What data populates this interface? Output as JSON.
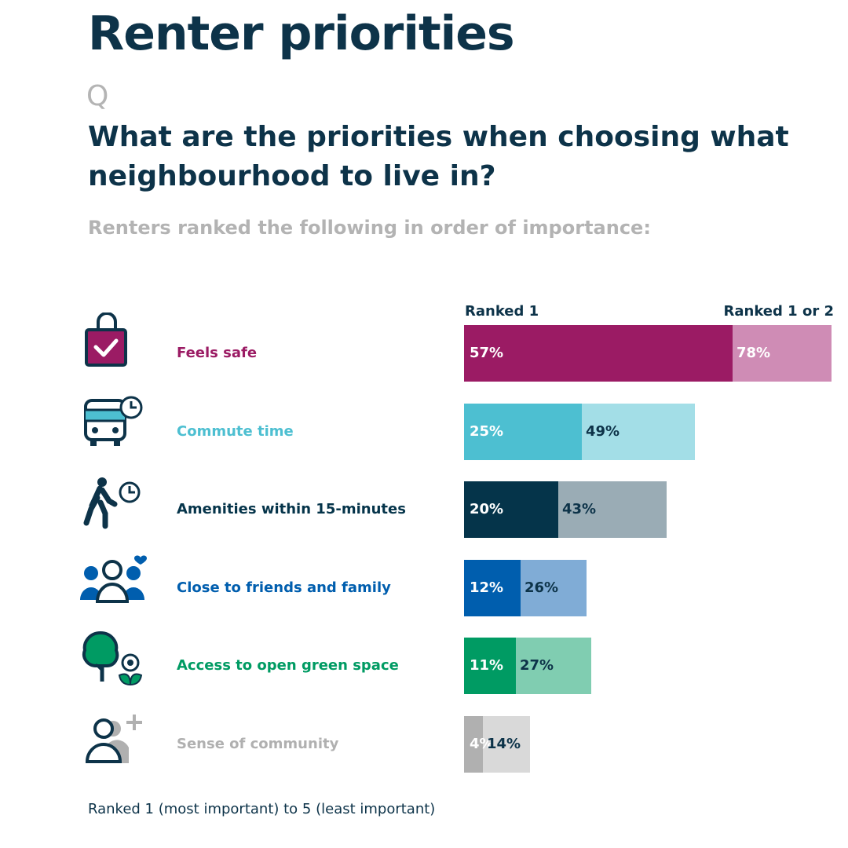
{
  "title": "Renter priorities",
  "q_mark": "Q",
  "question": "What are the priorities when choosing what neighbourhood to live in?",
  "subtitle": "Renters ranked the following in order of importance:",
  "footnote": "Ranked 1 (most important) to 5 (least important)",
  "chart_data": {
    "type": "bar",
    "orientation": "horizontal",
    "series": [
      {
        "name": "Ranked 1",
        "values": [
          57,
          25,
          20,
          12,
          11,
          4
        ]
      },
      {
        "name": "Ranked 1 or 2",
        "values": [
          78,
          49,
          43,
          26,
          27,
          14
        ]
      }
    ],
    "categories": [
      {
        "label": "Feels safe",
        "icon": "lock-check-icon",
        "color": "#9b1b64",
        "light": "#cf8cb5",
        "label_color": "#9b1b64",
        "inner_text": "#ffffff",
        "outer_text": "#ffffff"
      },
      {
        "label": "Commute time",
        "icon": "bus-clock-icon",
        "color": "#4dbfd1",
        "light": "#a3dee7",
        "label_color": "#4dbfd1",
        "inner_text": "#ffffff",
        "outer_text": "#0d3349"
      },
      {
        "label": "Amenities within 15-minutes",
        "icon": "walking-clock-icon",
        "color": "#05344a",
        "light": "#9aacb5",
        "label_color": "#05344a",
        "inner_text": "#ffffff",
        "outer_text": "#0d3349"
      },
      {
        "label": "Close to friends and family",
        "icon": "people-heart-icon",
        "color": "#005eae",
        "light": "#80acd6",
        "label_color": "#005eae",
        "inner_text": "#ffffff",
        "outer_text": "#0d3349"
      },
      {
        "label": "Access to open green space",
        "icon": "tree-flower-icon",
        "color": "#009b63",
        "light": "#80cdb1",
        "label_color": "#009b63",
        "inner_text": "#ffffff",
        "outer_text": "#0d3349"
      },
      {
        "label": "Sense of community",
        "icon": "person-add-icon",
        "color": "#b0b0b0",
        "light": "#d9d9d9",
        "label_color": "#b0b0b0",
        "inner_text": "#ffffff",
        "outer_text": "#0d3349"
      }
    ],
    "unit": "%",
    "xlim": [
      0,
      78
    ]
  }
}
